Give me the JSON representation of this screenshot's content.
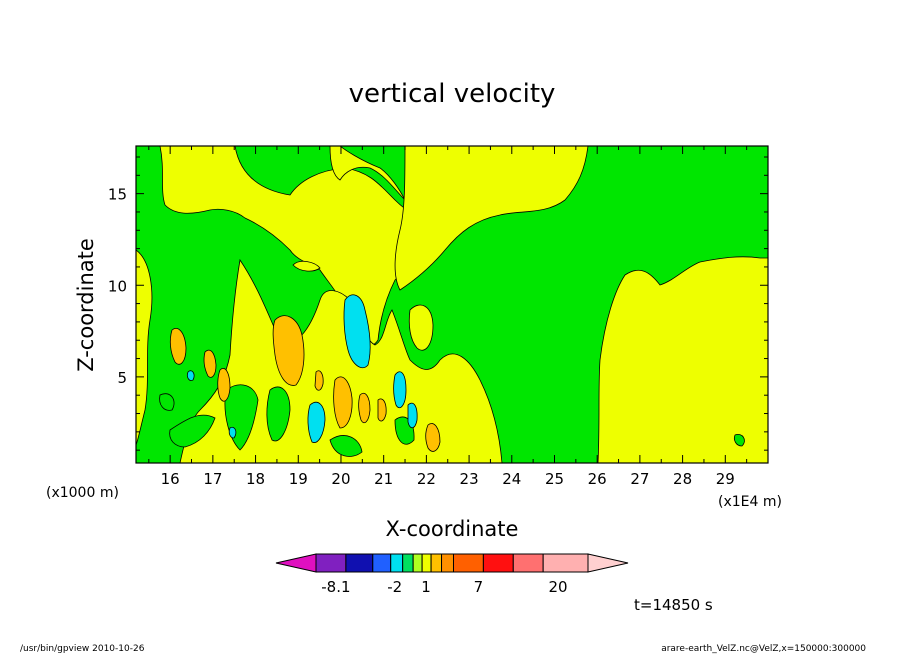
{
  "chart_data": {
    "type": "contour",
    "title": "vertical velocity",
    "xlabel": "X-coordinate",
    "ylabel": "Z-coordinate",
    "x_unit_label": "(x1E4 m)",
    "z_unit_label": "(x1000 m)",
    "xlim": [
      15.2,
      30.0
    ],
    "ylim": [
      0.3,
      17.6
    ],
    "x_ticks": [
      "16",
      "17",
      "18",
      "19",
      "20",
      "21",
      "22",
      "23",
      "24",
      "25",
      "26",
      "27",
      "28",
      "29"
    ],
    "y_ticks": [
      "5",
      "10",
      "15"
    ],
    "x_tick_values": [
      16,
      17,
      18,
      19,
      20,
      21,
      22,
      23,
      24,
      25,
      26,
      27,
      28,
      29
    ],
    "y_tick_values": [
      5,
      10,
      15
    ],
    "colorbar": {
      "levels": [
        {
          "color": "#e010c0"
        },
        {
          "color": "#8020c0"
        },
        {
          "color": "#1010b0"
        },
        {
          "color": "#2060ff"
        },
        {
          "color": "#00e0f0"
        },
        {
          "color": "#00e060"
        },
        {
          "color": "#b0ff20"
        },
        {
          "color": "#eeff00"
        },
        {
          "color": "#ffc000"
        },
        {
          "color": "#ff9000"
        },
        {
          "color": "#ff6000"
        },
        {
          "color": "#ff1010"
        },
        {
          "color": "#ff7070"
        },
        {
          "color": "#ffb0b0"
        },
        {
          "color": "#ffd0d0"
        }
      ],
      "labels": [
        "-8.1",
        "-2",
        "1",
        "7",
        "20"
      ]
    },
    "time_label": "t=14850 s"
  },
  "footer": {
    "left": "/usr/bin/gpview   2010-10-26",
    "right": "arare-earth_VelZ.nc@VelZ,x=150000:300000"
  },
  "colors": {
    "green": "#00e600",
    "yellow": "#eeff00",
    "orange": "#ffc000",
    "cyan": "#00e0f0"
  }
}
